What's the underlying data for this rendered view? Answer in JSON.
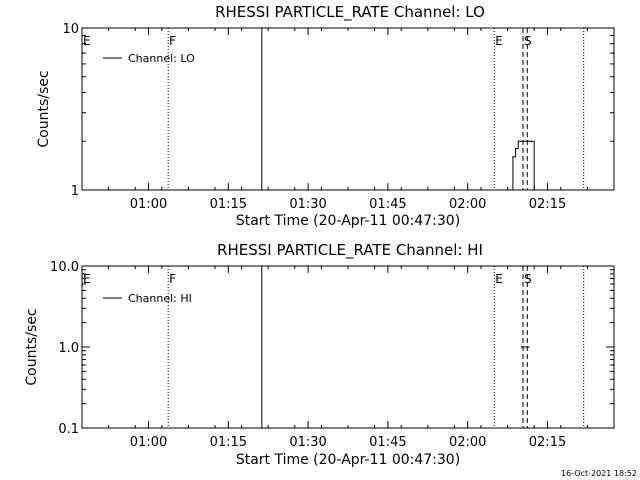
{
  "footer": {
    "timestamp": "16-Oct-2021 18:52"
  },
  "chart_data": [
    {
      "type": "line",
      "title": "RHESSI PARTICLE_RATE Channel: LO",
      "xlabel": "Start Time (20-Apr-11 00:47:30)",
      "ylabel": "Counts/sec",
      "scale_y": "log",
      "xlim_minutes": [
        0,
        100
      ],
      "ylim": [
        1,
        10
      ],
      "x_ticks": [
        {
          "label": "01:00",
          "minute": 12.5
        },
        {
          "label": "01:15",
          "minute": 27.5
        },
        {
          "label": "01:30",
          "minute": 42.5
        },
        {
          "label": "01:45",
          "minute": 57.5
        },
        {
          "label": "02:00",
          "minute": 72.5
        },
        {
          "label": "02:15",
          "minute": 87.5
        }
      ],
      "y_ticks": [
        {
          "label": "1",
          "value": 1
        },
        {
          "label": "10",
          "value": 10
        }
      ],
      "legend": {
        "label": "Channel: LO",
        "position": "top-left"
      },
      "markers": [
        {
          "label": "E",
          "minute": 0,
          "style": "none"
        },
        {
          "label": "F",
          "minute": 16.2,
          "style": "dotted"
        },
        {
          "label": "",
          "minute": 33.8,
          "style": "solid"
        },
        {
          "label": "E",
          "minute": 77.5,
          "style": "dotted"
        },
        {
          "label": "S",
          "minute": 82.9,
          "style": "dashed"
        },
        {
          "label": "",
          "minute": 83.7,
          "style": "dashed"
        },
        {
          "label": "",
          "minute": 94.3,
          "style": "dotted"
        }
      ],
      "series": [
        {
          "x": [
            80.5,
            81.0,
            81.5,
            82.0,
            82.5,
            83.0,
            83.5,
            84.0,
            84.5,
            85.0
          ],
          "values": [
            1,
            1.6,
            1.8,
            2,
            2,
            2,
            2,
            2,
            2,
            1
          ]
        }
      ]
    },
    {
      "type": "line",
      "title": "RHESSI PARTICLE_RATE Channel: HI",
      "xlabel": "Start Time (20-Apr-11 00:47:30)",
      "ylabel": "Counts/sec",
      "scale_y": "log",
      "xlim_minutes": [
        0,
        100
      ],
      "ylim": [
        0.1,
        10
      ],
      "x_ticks": [
        {
          "label": "01:00",
          "minute": 12.5
        },
        {
          "label": "01:15",
          "minute": 27.5
        },
        {
          "label": "01:30",
          "minute": 42.5
        },
        {
          "label": "01:45",
          "minute": 57.5
        },
        {
          "label": "02:00",
          "minute": 72.5
        },
        {
          "label": "02:15",
          "minute": 87.5
        }
      ],
      "y_ticks": [
        {
          "label": "0.1",
          "value": 0.1
        },
        {
          "label": "1.0",
          "value": 1
        },
        {
          "label": "10.0",
          "value": 10
        }
      ],
      "legend": {
        "label": "Channel: HI",
        "position": "top-left"
      },
      "markers": [
        {
          "label": "E",
          "minute": 0,
          "style": "none"
        },
        {
          "label": "F",
          "minute": 16.2,
          "style": "dotted"
        },
        {
          "label": "",
          "minute": 33.8,
          "style": "solid"
        },
        {
          "label": "E",
          "minute": 77.5,
          "style": "dotted"
        },
        {
          "label": "S",
          "minute": 82.9,
          "style": "dashed"
        },
        {
          "label": "",
          "minute": 83.7,
          "style": "dashed"
        },
        {
          "label": "",
          "minute": 94.3,
          "style": "dotted"
        }
      ],
      "series": [
        {
          "x": [
            82.6,
            84.0
          ],
          "values": [
            1,
            1
          ]
        }
      ]
    }
  ]
}
